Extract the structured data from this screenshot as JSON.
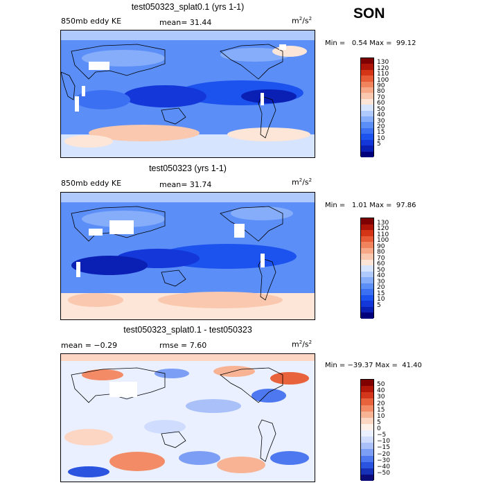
{
  "season": "SON",
  "colors": {
    "land": "#ffffff",
    "coast": "#000000",
    "eddy_scale": [
      "#00007a",
      "#0a1fb3",
      "#1337d8",
      "#1c52ed",
      "#3b70f3",
      "#5b8ef7",
      "#86adfa",
      "#afc9fd",
      "#d6e4fe",
      "#fde6d7",
      "#fac8ae",
      "#f7a886",
      "#f1845d",
      "#e75c36",
      "#d43516",
      "#ae1408",
      "#7f0000"
    ],
    "diff_scale": [
      "#0b0b7a",
      "#1730b8",
      "#2a53df",
      "#4d78f0",
      "#7c9ef5",
      "#a9c0f9",
      "#cfdcfd",
      "#eaf0ff",
      "#fff0ea",
      "#fcd5c3",
      "#f8b394",
      "#f38c66",
      "#e8623c",
      "#d4361b",
      "#b21608",
      "#800000"
    ]
  },
  "panels": [
    {
      "title": "test050323_splat0.1 (yrs 1-1)",
      "left_label": "850mb eddy KE",
      "center_label": "mean=  31.44",
      "units": "m",
      "units_exp1": "2",
      "units_mid": "/s",
      "units_exp2": "2",
      "min_max": "Min =   0.54 Max =  99.12",
      "cbar_labels": [
        "130",
        "120",
        "110",
        "100",
        "90",
        "80",
        "70",
        "60",
        "50",
        "40",
        "30",
        "20",
        "15",
        "10",
        "5"
      ]
    },
    {
      "title": "test050323 (yrs 1-1)",
      "left_label": "850mb eddy KE",
      "center_label": "mean=  31.74",
      "units": "m",
      "units_exp1": "2",
      "units_mid": "/s",
      "units_exp2": "2",
      "min_max": "Min =   1.01 Max =  97.86",
      "cbar_labels": [
        "130",
        "120",
        "110",
        "100",
        "90",
        "80",
        "70",
        "60",
        "50",
        "40",
        "30",
        "20",
        "15",
        "10",
        "5"
      ]
    },
    {
      "title": "test050323_splat0.1 - test050323",
      "left_label": "mean =  −0.29",
      "center_label": "rmse =   7.60",
      "units": "m",
      "units_exp1": "2",
      "units_mid": "/s",
      "units_exp2": "2",
      "min_max": "Min = −39.37 Max =  41.40",
      "cbar_labels": [
        "50",
        "40",
        "30",
        "20",
        "15",
        "10",
        "5",
        "0",
        "−5",
        "−10",
        "−15",
        "−20",
        "−30",
        "−40",
        "−50"
      ]
    }
  ]
}
